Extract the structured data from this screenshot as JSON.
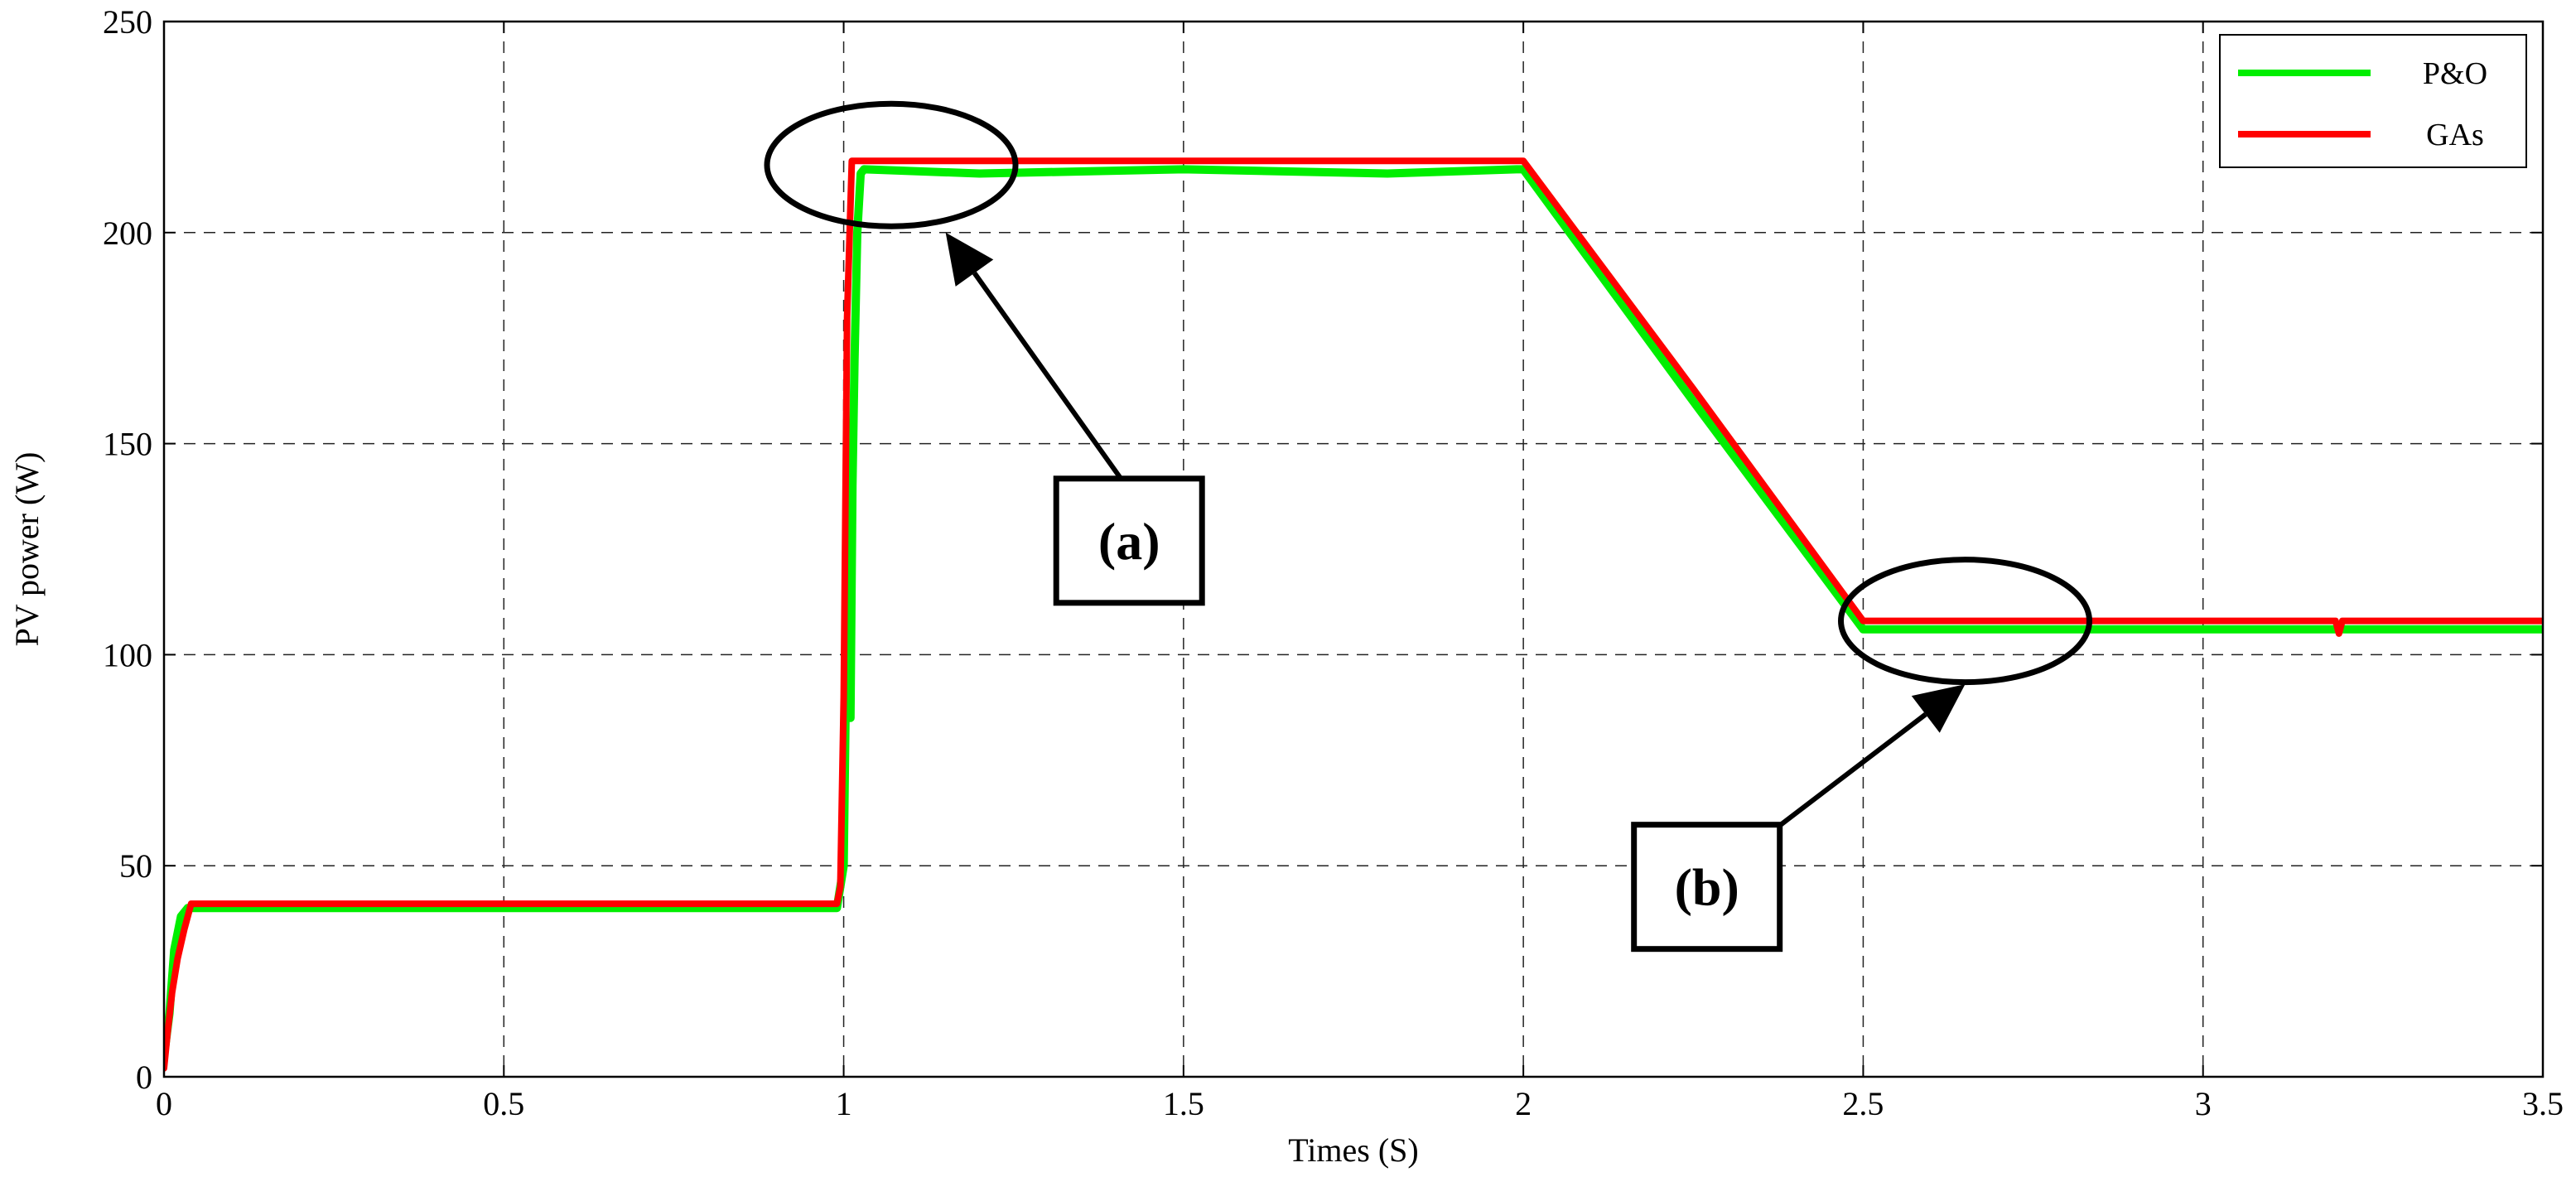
{
  "chart_data": {
    "type": "line",
    "xlabel": "Times (S)",
    "ylabel": "PV power (W)",
    "xlim": [
      0,
      3.5
    ],
    "ylim": [
      0,
      250
    ],
    "xticks": [
      0,
      0.5,
      1,
      1.5,
      2,
      2.5,
      3,
      3.5
    ],
    "xtick_labels": [
      "0",
      "0.5",
      "1",
      "1.5",
      "2",
      "2.5",
      "3",
      "3.5"
    ],
    "yticks": [
      0,
      50,
      100,
      150,
      200,
      250
    ],
    "ytick_labels": [
      "0",
      "50",
      "100",
      "150",
      "200",
      "250"
    ],
    "grid": true,
    "legend_position": "top-right",
    "series": [
      {
        "name": "P&O",
        "color": "#00ee00",
        "x": [
          0,
          0.008,
          0.015,
          0.025,
          0.035,
          0.5,
          0.99,
          1.0,
          1.005,
          1.01,
          1.013,
          1.016,
          1.02,
          1.025,
          1.03,
          1.2,
          1.5,
          1.8,
          1.99,
          2.0,
          2.25,
          2.5,
          2.75,
          3.0,
          3.25,
          3.5
        ],
        "y": [
          5,
          15,
          30,
          38,
          40,
          40,
          40,
          50,
          115,
          85,
          140,
          170,
          200,
          214,
          215,
          214,
          215,
          214,
          215,
          215,
          160,
          106,
          106,
          106,
          106,
          106
        ]
      },
      {
        "name": "GAs",
        "color": "#ff0000",
        "x": [
          0,
          0.005,
          0.012,
          0.02,
          0.03,
          0.04,
          0.5,
          0.99,
          0.995,
          1.0,
          1.005,
          1.012,
          1.5,
          2.0,
          2.25,
          2.5,
          2.75,
          3.0,
          3.195,
          3.2,
          3.205,
          3.5
        ],
        "y": [
          2,
          10,
          20,
          28,
          35,
          41,
          41,
          41,
          45,
          90,
          180,
          217,
          217,
          217,
          163,
          108,
          108,
          108,
          108,
          105,
          108,
          108
        ]
      }
    ],
    "annotations": [
      {
        "label": "(a)",
        "target_x": 1.15,
        "target_y": 200,
        "ellipse_center": [
          1.07,
          216
        ],
        "box_center": [
          1.42,
          127
        ]
      },
      {
        "label": "(b)",
        "target_x": 2.65,
        "target_y": 93,
        "ellipse_center": [
          2.65,
          108
        ],
        "box_center": [
          2.27,
          45
        ]
      }
    ]
  }
}
